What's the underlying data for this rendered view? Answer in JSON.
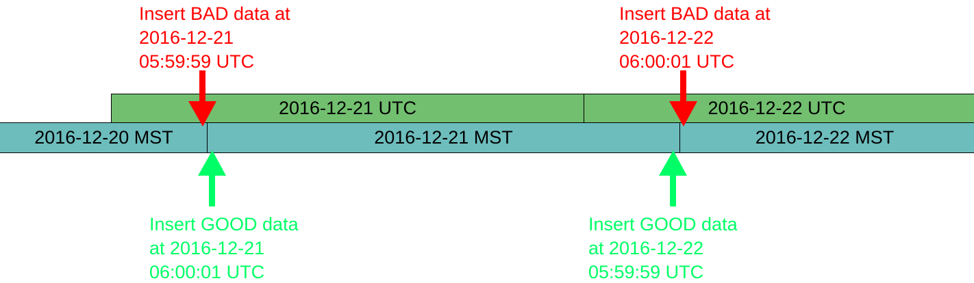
{
  "colors": {
    "utc_band": "#72bf6f",
    "mst_band": "#6dbdbd",
    "bad": "#ff0000",
    "good": "#00ff66",
    "divider": "#000000"
  },
  "utc_row": {
    "segments": [
      {
        "label": "2016-12-21 UTC"
      },
      {
        "label": "2016-12-22 UTC"
      }
    ]
  },
  "mst_row": {
    "segments": [
      {
        "label": "2016-12-20 MST"
      },
      {
        "label": "2016-12-21 MST"
      },
      {
        "label": "2016-12-22 MST"
      }
    ]
  },
  "bad_notes": [
    {
      "lines": [
        "Insert BAD data at",
        "2016-12-21",
        "05:59:59 UTC"
      ],
      "icon": "down-arrow-icon"
    },
    {
      "lines": [
        "Insert BAD data at",
        "2016-12-22",
        "06:00:01 UTC"
      ],
      "icon": "down-arrow-icon"
    }
  ],
  "good_notes": [
    {
      "lines": [
        "Insert GOOD data",
        "at 2016-12-21",
        "06:00:01 UTC"
      ],
      "icon": "up-arrow-icon"
    },
    {
      "lines": [
        "Insert GOOD data",
        "at 2016-12-22",
        "05:59:59 UTC"
      ],
      "icon": "up-arrow-icon"
    }
  ]
}
